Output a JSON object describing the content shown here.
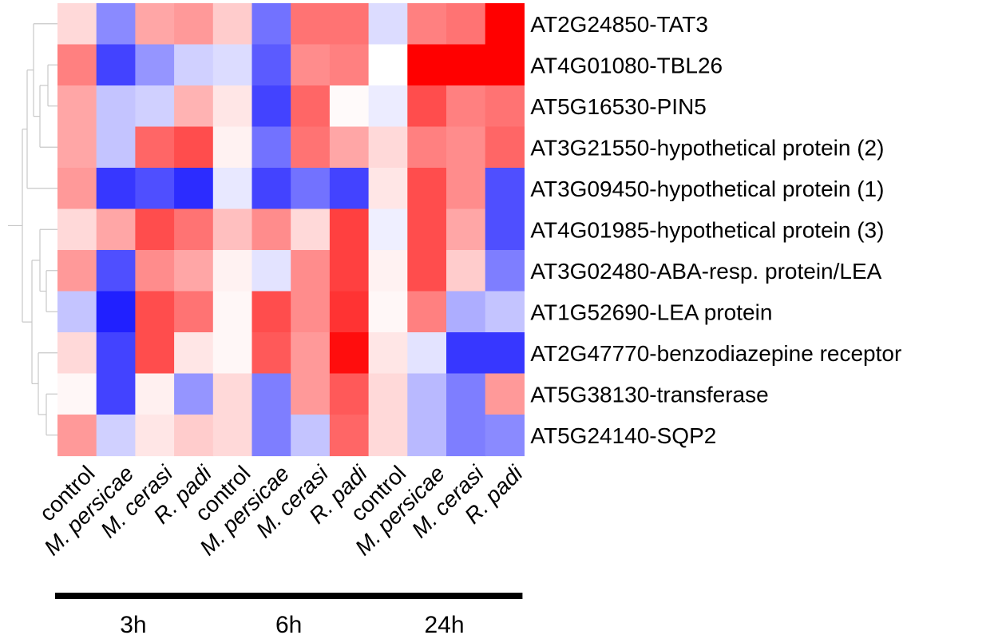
{
  "chart_data": {
    "type": "heatmap",
    "title": "",
    "xlabel": "",
    "ylabel": "",
    "rows": [
      "AT2G24850-TAT3",
      "AT4G01080-TBL26",
      "AT5G16530-PIN5",
      "AT3G21550-hypothetical protein (2)",
      "AT3G09450-hypothetical protein (1)",
      "AT4G01985-hypothetical protein (3)",
      "AT3G02480-ABA-resp. protein/LEA",
      "AT1G52690-LEA protein",
      "AT2G47770-benzodiazepine receptor",
      "AT5G38130-transferase",
      "AT5G24140-SQP2"
    ],
    "columns": [
      {
        "label": "control",
        "italic": false,
        "group": "3h"
      },
      {
        "label": "M. persicae",
        "italic": true,
        "group": "3h"
      },
      {
        "label": "M. cerasi",
        "italic": true,
        "group": "3h"
      },
      {
        "label": "R. padi",
        "italic": true,
        "group": "3h"
      },
      {
        "label": "control",
        "italic": false,
        "group": "6h"
      },
      {
        "label": "M. persicae",
        "italic": true,
        "group": "6h"
      },
      {
        "label": "M. cerasi",
        "italic": true,
        "group": "6h"
      },
      {
        "label": "R. padi",
        "italic": true,
        "group": "6h"
      },
      {
        "label": "control",
        "italic": false,
        "group": "24h"
      },
      {
        "label": "M. persicae",
        "italic": true,
        "group": "24h"
      },
      {
        "label": "M. cerasi",
        "italic": true,
        "group": "24h"
      },
      {
        "label": "R. padi",
        "italic": true,
        "group": "24h"
      }
    ],
    "groups": [
      {
        "label": "3h",
        "columns": [
          0,
          3
        ]
      },
      {
        "label": "6h",
        "columns": [
          4,
          7
        ]
      },
      {
        "label": "24h",
        "columns": [
          8,
          11
        ]
      }
    ],
    "color_scale": {
      "low": "#1414ff",
      "mid": "#ffffff",
      "high": "#ff0000",
      "range": [
        -1,
        1
      ]
    },
    "values": [
      [
        0.15,
        -0.5,
        0.35,
        0.4,
        0.2,
        -0.6,
        0.55,
        0.55,
        -0.15,
        0.5,
        0.55,
        1.0
      ],
      [
        0.5,
        -0.8,
        -0.45,
        -0.2,
        -0.15,
        -0.7,
        0.45,
        0.5,
        0.0,
        1.0,
        1.0,
        1.0
      ],
      [
        0.35,
        -0.25,
        -0.2,
        0.3,
        0.1,
        -0.8,
        0.6,
        0.02,
        -0.08,
        0.7,
        0.5,
        0.55
      ],
      [
        0.35,
        -0.25,
        0.6,
        0.7,
        0.05,
        -0.6,
        0.55,
        0.35,
        0.15,
        0.5,
        0.45,
        0.6
      ],
      [
        0.4,
        -0.85,
        -0.75,
        -0.9,
        -0.1,
        -0.8,
        -0.6,
        -0.8,
        0.1,
        0.7,
        0.45,
        -0.75
      ],
      [
        0.15,
        0.35,
        0.7,
        0.55,
        0.25,
        0.45,
        0.15,
        0.75,
        -0.07,
        0.7,
        0.35,
        -0.75
      ],
      [
        0.4,
        -0.75,
        0.45,
        0.35,
        0.05,
        -0.12,
        0.45,
        0.75,
        0.05,
        0.7,
        0.2,
        -0.55
      ],
      [
        -0.25,
        -0.95,
        0.7,
        0.55,
        0.03,
        0.7,
        0.45,
        0.8,
        0.03,
        0.5,
        -0.35,
        -0.25
      ],
      [
        0.15,
        -0.8,
        0.7,
        0.1,
        0.03,
        0.65,
        0.4,
        0.95,
        0.1,
        -0.12,
        -0.85,
        -0.85
      ],
      [
        0.03,
        -0.8,
        0.06,
        -0.45,
        0.15,
        -0.55,
        0.4,
        0.65,
        0.15,
        -0.3,
        -0.55,
        0.4
      ],
      [
        0.4,
        -0.2,
        0.1,
        0.2,
        0.15,
        -0.55,
        -0.25,
        0.6,
        0.15,
        -0.3,
        -0.55,
        -0.5
      ]
    ],
    "dendrogram": true,
    "legend": "none"
  }
}
